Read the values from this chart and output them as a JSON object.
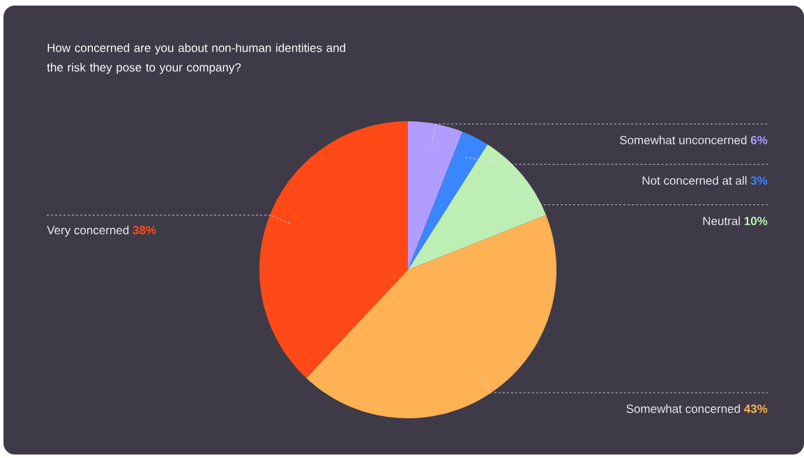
{
  "chart_data": {
    "type": "pie",
    "title": "How concerned are you about non-human identities and the risk they pose to your company?",
    "categories": [
      "Somewhat unconcerned",
      "Not concerned at all",
      "Neutral",
      "Somewhat concerned",
      "Very concerned"
    ],
    "values": [
      6,
      3,
      10,
      43,
      38
    ],
    "value_labels": [
      "6%",
      "3%",
      "10%",
      "43%",
      "38%"
    ],
    "colors": [
      "#b19cff",
      "#3a86ff",
      "#bdefb4",
      "#ffb254",
      "#ff4a17"
    ]
  }
}
